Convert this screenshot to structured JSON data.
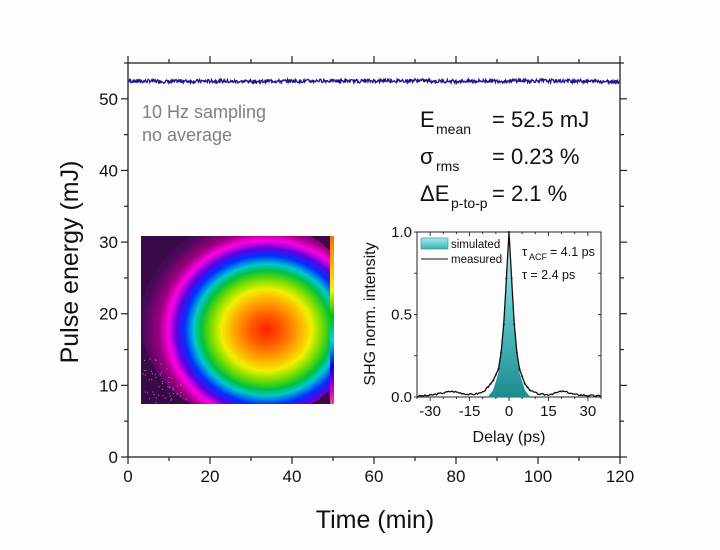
{
  "chart_data": [
    {
      "type": "line",
      "title": "",
      "xlabel": "Time (min)",
      "ylabel": "Pulse energy (mJ)",
      "xlim": [
        0,
        120
      ],
      "ylim": [
        0,
        55
      ],
      "x_ticks": [
        0,
        20,
        40,
        60,
        80,
        100,
        120
      ],
      "x_tick_labels": [
        "0",
        "20",
        "40",
        "60",
        "80",
        "100",
        "120"
      ],
      "y_ticks": [
        0,
        10,
        20,
        30,
        40,
        50
      ],
      "y_tick_labels": [
        "0",
        "10",
        "20",
        "30",
        "40",
        "50"
      ],
      "grid": false,
      "series": [
        {
          "name": "Pulse energy",
          "color": "#1a1a8c",
          "mean": 52.5,
          "rms_percent": 0.23,
          "p_to_p_percent": 2.1,
          "x_range": [
            0,
            120
          ],
          "sampling_hz": 10
        }
      ],
      "annotations": {
        "sampling_line1": "10 Hz sampling",
        "sampling_line2": "no average",
        "stats": [
          {
            "symbol": "E",
            "sub": "mean",
            "value": "= 52.5 mJ"
          },
          {
            "symbol": "σ",
            "sub": "rms",
            "value": "= 0.23 %"
          },
          {
            "symbol": "ΔE",
            "sub": "p-to-p",
            "value": "= 2.1 %"
          }
        ]
      }
    },
    {
      "type": "area",
      "title": "",
      "xlabel": "Delay (ps)",
      "ylabel": "SHG norm. intensity",
      "xlim": [
        -35,
        35
      ],
      "ylim": [
        0,
        1.0
      ],
      "x_ticks": [
        -30,
        -15,
        0,
        15,
        30
      ],
      "x_tick_labels": [
        "-30",
        "-15",
        "0",
        "15",
        "30"
      ],
      "y_ticks": [
        0,
        0.5,
        1.0
      ],
      "y_tick_labels": [
        "0.0",
        "0.5",
        "1.0"
      ],
      "legend": {
        "position": "top-left",
        "entries": [
          "simulated",
          "measured"
        ]
      },
      "annotations": {
        "tau_acf_symbol": "τ",
        "tau_acf_sub": "ACF",
        "tau_acf_value": "= 4.1 ps",
        "tau": "τ = 2.4 ps"
      },
      "series": [
        {
          "name": "simulated",
          "color": "#2fa3a6",
          "fwhm_ps": 4.1,
          "x": [
            -8,
            -6,
            -4,
            -3,
            -2,
            -1,
            0,
            1,
            2,
            3,
            4,
            6,
            8
          ],
          "y": [
            0.0,
            0.04,
            0.14,
            0.25,
            0.42,
            0.7,
            1.0,
            0.7,
            0.42,
            0.25,
            0.14,
            0.04,
            0.0
          ]
        },
        {
          "name": "measured",
          "color": "#111111",
          "x": [
            -35,
            -30,
            -25,
            -22,
            -20,
            -17,
            -15,
            -12,
            -10,
            -8,
            -6,
            -4,
            -3,
            -2,
            -1,
            0,
            1,
            2,
            3,
            4,
            6,
            8,
            10,
            12,
            15,
            18,
            20,
            22,
            25,
            30,
            35
          ],
          "y": [
            0.005,
            0.01,
            0.025,
            0.035,
            0.03,
            0.02,
            0.015,
            0.02,
            0.03,
            0.06,
            0.1,
            0.17,
            0.27,
            0.44,
            0.72,
            1.0,
            0.72,
            0.44,
            0.27,
            0.17,
            0.08,
            0.04,
            0.025,
            0.015,
            0.015,
            0.025,
            0.035,
            0.03,
            0.015,
            0.01,
            0.005
          ]
        }
      ]
    }
  ],
  "beam_profile": {
    "label": "beam-profile-image",
    "center_color": "#ff2a00",
    "background_color": "#3a0a4a",
    "colormap": [
      "#ff2a00",
      "#ff8800",
      "#ffee00",
      "#00c000",
      "#00d0d0",
      "#0000ff",
      "#ff00ff",
      "#3a0a4a"
    ]
  }
}
